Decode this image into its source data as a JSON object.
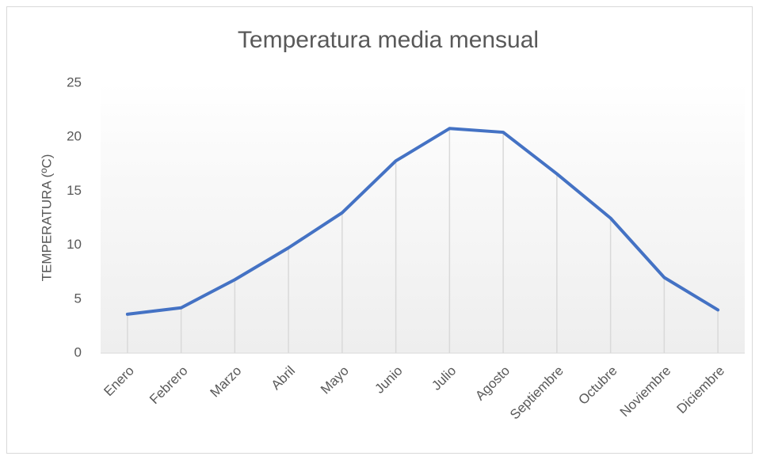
{
  "chart_data": {
    "type": "line",
    "title": "Temperatura media mensual",
    "y_label": "TEMPERATURA (ºC)",
    "categories": [
      "Enero",
      "Febrero",
      "Marzo",
      "Abril",
      "Mayo",
      "Junio",
      "Julio",
      "Agosto",
      "Septiembre",
      "Octubre",
      "Noviembre",
      "Diciembre"
    ],
    "values": [
      3.6,
      4.2,
      6.8,
      9.75,
      13.0,
      17.8,
      20.8,
      20.45,
      16.6,
      12.5,
      7.0,
      4.0
    ],
    "color": "#4472c4",
    "ylim": [
      0,
      25
    ],
    "yticks": [
      0,
      5,
      10,
      15,
      20,
      25
    ],
    "drop_lines": true
  }
}
